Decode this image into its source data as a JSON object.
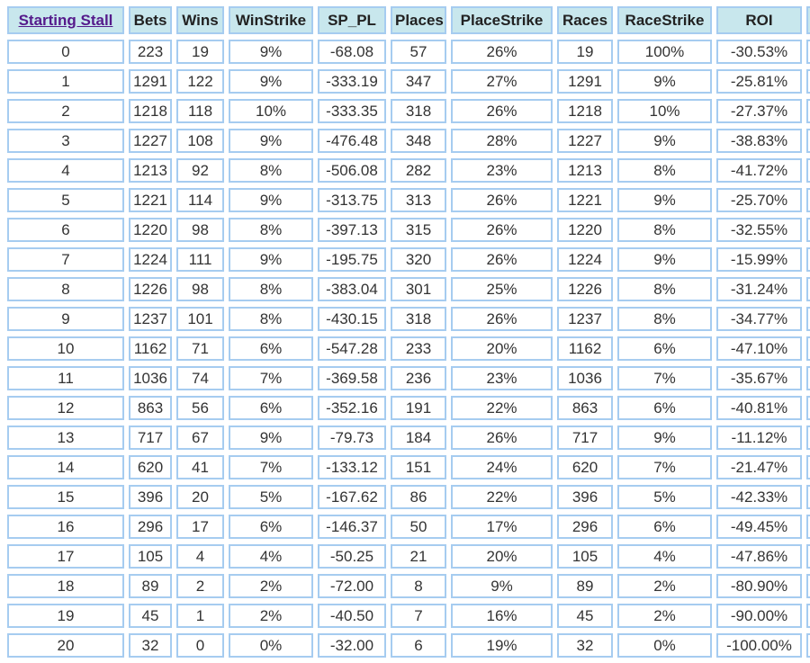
{
  "page": {
    "background": "#ffffff"
  },
  "colors": {
    "header_bg": "#c8e7ed",
    "cell_border": "#a6ccf0",
    "header_text": "#222222",
    "cell_text": "#333333",
    "link_color": "#551a8b"
  },
  "table": {
    "columns": [
      {
        "key": "starting_stall",
        "label": "Starting Stall",
        "is_link": true
      },
      {
        "key": "bets",
        "label": "Bets",
        "is_link": false
      },
      {
        "key": "wins",
        "label": "Wins",
        "is_link": false
      },
      {
        "key": "winstrike",
        "label": "WinStrike",
        "is_link": false
      },
      {
        "key": "sp_pl",
        "label": "SP_PL",
        "is_link": false
      },
      {
        "key": "places",
        "label": "Places",
        "is_link": false
      },
      {
        "key": "placestrike",
        "label": "PlaceStrike",
        "is_link": false
      },
      {
        "key": "races",
        "label": "Races",
        "is_link": false
      },
      {
        "key": "racestrike",
        "label": "RaceStrike",
        "is_link": false
      },
      {
        "key": "roi",
        "label": "ROI",
        "is_link": false
      }
    ],
    "rows": [
      [
        "0",
        "223",
        "19",
        "9%",
        "-68.08",
        "57",
        "26%",
        "19",
        "100%",
        "-30.53%"
      ],
      [
        "1",
        "1291",
        "122",
        "9%",
        "-333.19",
        "347",
        "27%",
        "1291",
        "9%",
        "-25.81%"
      ],
      [
        "2",
        "1218",
        "118",
        "10%",
        "-333.35",
        "318",
        "26%",
        "1218",
        "10%",
        "-27.37%"
      ],
      [
        "3",
        "1227",
        "108",
        "9%",
        "-476.48",
        "348",
        "28%",
        "1227",
        "9%",
        "-38.83%"
      ],
      [
        "4",
        "1213",
        "92",
        "8%",
        "-506.08",
        "282",
        "23%",
        "1213",
        "8%",
        "-41.72%"
      ],
      [
        "5",
        "1221",
        "114",
        "9%",
        "-313.75",
        "313",
        "26%",
        "1221",
        "9%",
        "-25.70%"
      ],
      [
        "6",
        "1220",
        "98",
        "8%",
        "-397.13",
        "315",
        "26%",
        "1220",
        "8%",
        "-32.55%"
      ],
      [
        "7",
        "1224",
        "111",
        "9%",
        "-195.75",
        "320",
        "26%",
        "1224",
        "9%",
        "-15.99%"
      ],
      [
        "8",
        "1226",
        "98",
        "8%",
        "-383.04",
        "301",
        "25%",
        "1226",
        "8%",
        "-31.24%"
      ],
      [
        "9",
        "1237",
        "101",
        "8%",
        "-430.15",
        "318",
        "26%",
        "1237",
        "8%",
        "-34.77%"
      ],
      [
        "10",
        "1162",
        "71",
        "6%",
        "-547.28",
        "233",
        "20%",
        "1162",
        "6%",
        "-47.10%"
      ],
      [
        "11",
        "1036",
        "74",
        "7%",
        "-369.58",
        "236",
        "23%",
        "1036",
        "7%",
        "-35.67%"
      ],
      [
        "12",
        "863",
        "56",
        "6%",
        "-352.16",
        "191",
        "22%",
        "863",
        "6%",
        "-40.81%"
      ],
      [
        "13",
        "717",
        "67",
        "9%",
        "-79.73",
        "184",
        "26%",
        "717",
        "9%",
        "-11.12%"
      ],
      [
        "14",
        "620",
        "41",
        "7%",
        "-133.12",
        "151",
        "24%",
        "620",
        "7%",
        "-21.47%"
      ],
      [
        "15",
        "396",
        "20",
        "5%",
        "-167.62",
        "86",
        "22%",
        "396",
        "5%",
        "-42.33%"
      ],
      [
        "16",
        "296",
        "17",
        "6%",
        "-146.37",
        "50",
        "17%",
        "296",
        "6%",
        "-49.45%"
      ],
      [
        "17",
        "105",
        "4",
        "4%",
        "-50.25",
        "21",
        "20%",
        "105",
        "4%",
        "-47.86%"
      ],
      [
        "18",
        "89",
        "2",
        "2%",
        "-72.00",
        "8",
        "9%",
        "89",
        "2%",
        "-80.90%"
      ],
      [
        "19",
        "45",
        "1",
        "2%",
        "-40.50",
        "7",
        "16%",
        "45",
        "2%",
        "-90.00%"
      ],
      [
        "20",
        "32",
        "0",
        "0%",
        "-32.00",
        "6",
        "19%",
        "32",
        "0%",
        "-100.00%"
      ]
    ]
  }
}
